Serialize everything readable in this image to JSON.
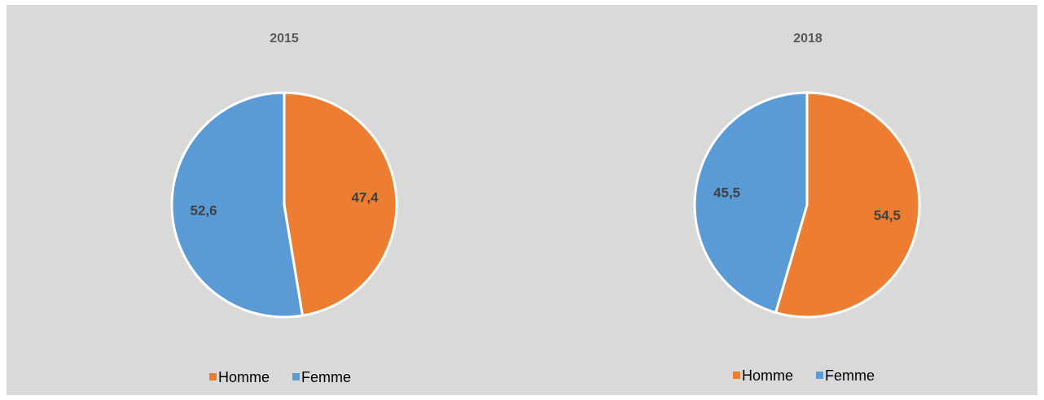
{
  "chart_data": [
    {
      "type": "pie",
      "title": "2015",
      "categories": [
        "Homme",
        "Femme"
      ],
      "values": [
        47.4,
        52.6
      ],
      "labels": [
        "47,4",
        "52,6"
      ],
      "colors": [
        "#ed7d31",
        "#5b9bd5"
      ],
      "legend": {
        "position": "bottom",
        "entries": [
          "Homme",
          "Femme"
        ]
      }
    },
    {
      "type": "pie",
      "title": "2018",
      "categories": [
        "Homme",
        "Femme"
      ],
      "values": [
        54.5,
        45.5
      ],
      "labels": [
        "54,5",
        "45,5"
      ],
      "colors": [
        "#ed7d31",
        "#5b9bd5"
      ],
      "legend": {
        "position": "bottom",
        "entries": [
          "Homme",
          "Femme"
        ]
      }
    }
  ]
}
